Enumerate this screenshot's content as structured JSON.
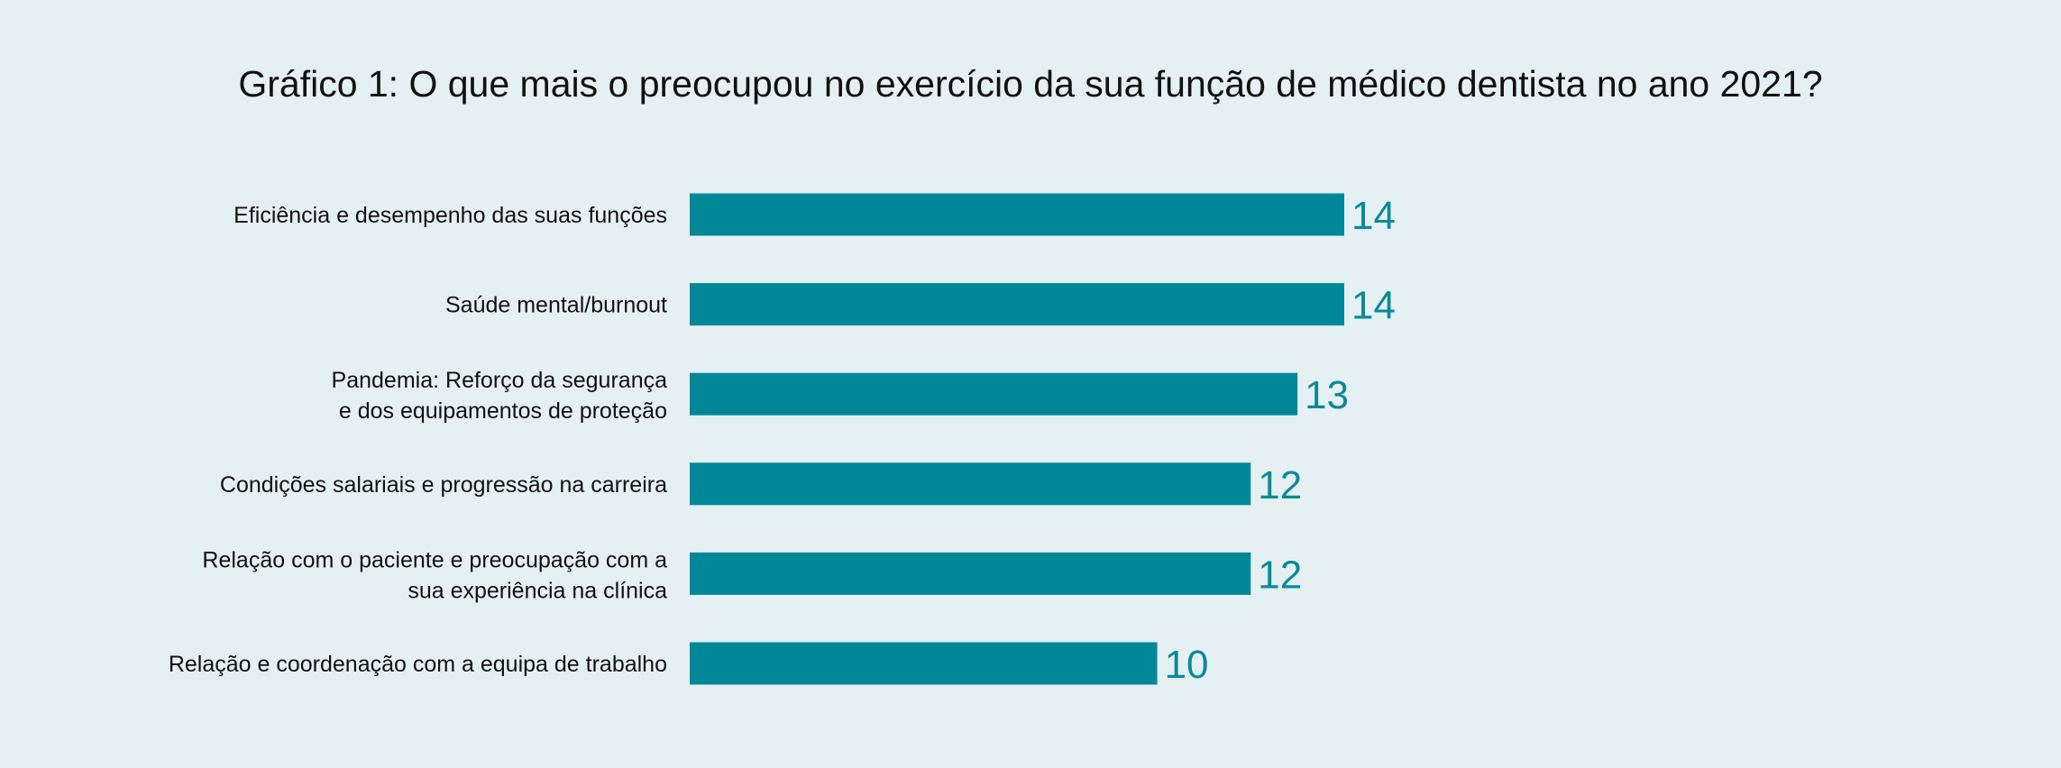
{
  "chart_data": {
    "type": "bar",
    "orientation": "horizontal",
    "title": "Gráfico 1: O que mais o preocupou no exercício da sua função de médico dentista no ano 2021?",
    "categories": [
      [
        "Eficiência e desempenho das suas funções"
      ],
      [
        "Saúde mental/burnout"
      ],
      [
        "Pandemia: Reforço da segurança",
        "e dos equipamentos de proteção"
      ],
      [
        "Condições salariais e progressão na carreira"
      ],
      [
        "Relação com o paciente e preocupação com a",
        "sua experiência na clínica"
      ],
      [
        "Relação e coordenação com a equipa de trabalho"
      ]
    ],
    "values": [
      14,
      14,
      13,
      12,
      12,
      10
    ],
    "xlim": [
      0,
      14
    ],
    "grid": false,
    "colors": {
      "bar": "#008899",
      "value_label": "#0a8a99",
      "background": "#e5f0f2"
    }
  }
}
